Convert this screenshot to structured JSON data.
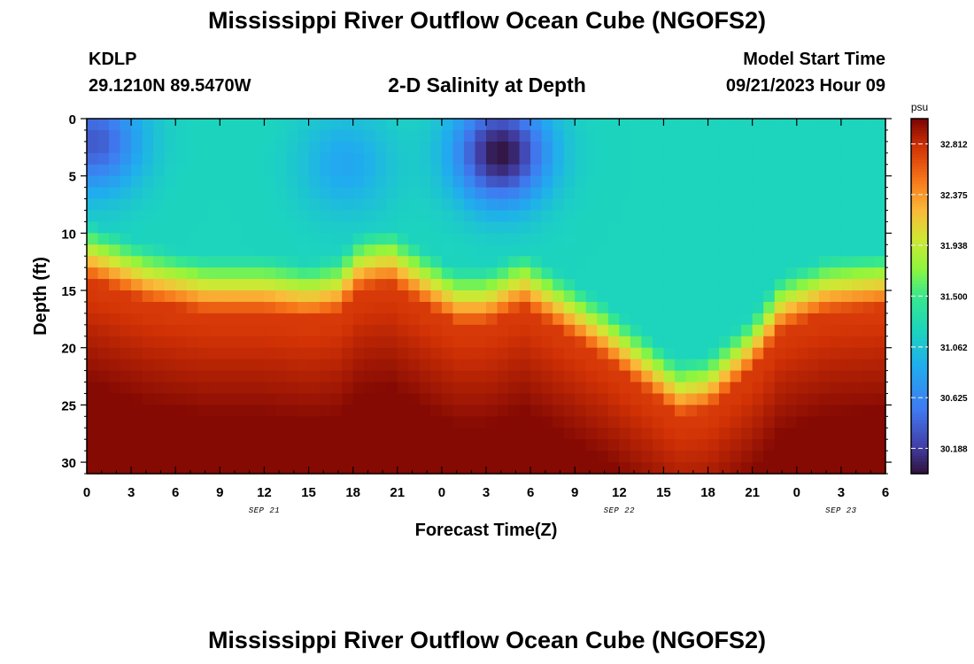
{
  "header": {
    "title": "Mississippi River Outflow Ocean Cube (NGOFS2)",
    "station": "KDLP",
    "coords": "29.1210N  89.5470W",
    "subtitle": "2-D Salinity at Depth",
    "model_start_label": "Model Start Time",
    "model_start_value": "09/21/2023 Hour 09"
  },
  "footer": {
    "title": "Mississippi River Outflow Ocean Cube (NGOFS2)"
  },
  "chart_data": {
    "type": "heatmap",
    "xlabel": "Forecast Time(Z)",
    "ylabel": "Depth (ft)",
    "x_range_hours": [
      0,
      54
    ],
    "x_ticks": [
      {
        "value": 0,
        "label": "0"
      },
      {
        "value": 3,
        "label": "3"
      },
      {
        "value": 6,
        "label": "6"
      },
      {
        "value": 9,
        "label": "9"
      },
      {
        "value": 12,
        "label": "12"
      },
      {
        "value": 15,
        "label": "15"
      },
      {
        "value": 18,
        "label": "18"
      },
      {
        "value": 21,
        "label": "21"
      },
      {
        "value": 24,
        "label": "0"
      },
      {
        "value": 27,
        "label": "3"
      },
      {
        "value": 30,
        "label": "6"
      },
      {
        "value": 33,
        "label": "9"
      },
      {
        "value": 36,
        "label": "12"
      },
      {
        "value": 39,
        "label": "15"
      },
      {
        "value": 42,
        "label": "18"
      },
      {
        "value": 45,
        "label": "21"
      },
      {
        "value": 48,
        "label": "0"
      },
      {
        "value": 51,
        "label": "3"
      },
      {
        "value": 54,
        "label": "6"
      }
    ],
    "date_labels": [
      {
        "value": 12,
        "label": "SEP 21"
      },
      {
        "value": 36,
        "label": "SEP 22"
      },
      {
        "value": 51,
        "label": "SEP 23"
      }
    ],
    "y_range": [
      0,
      31
    ],
    "y_ticks": [
      0,
      5,
      10,
      15,
      20,
      25,
      30
    ],
    "colorbar": {
      "unit": "psu",
      "range": [
        29.97,
        33.03
      ],
      "ticks": [
        "30.188",
        "30.625",
        "31.062",
        "31.500",
        "31.938",
        "32.375",
        "32.812"
      ]
    },
    "halocline_depth_ft": [
      {
        "x": 0,
        "depth": 12
      },
      {
        "x": 4,
        "depth": 14
      },
      {
        "x": 8,
        "depth": 15
      },
      {
        "x": 12,
        "depth": 15
      },
      {
        "x": 15,
        "depth": 15.5
      },
      {
        "x": 17,
        "depth": 15
      },
      {
        "x": 18.5,
        "depth": 13
      },
      {
        "x": 20.5,
        "depth": 12.5
      },
      {
        "x": 23,
        "depth": 14.5
      },
      {
        "x": 25,
        "depth": 16
      },
      {
        "x": 27,
        "depth": 16
      },
      {
        "x": 29.5,
        "depth": 14.5
      },
      {
        "x": 32,
        "depth": 16.5
      },
      {
        "x": 35,
        "depth": 19
      },
      {
        "x": 38,
        "depth": 22
      },
      {
        "x": 40,
        "depth": 24
      },
      {
        "x": 42,
        "depth": 23.5
      },
      {
        "x": 45,
        "depth": 20
      },
      {
        "x": 47,
        "depth": 16.5
      },
      {
        "x": 50,
        "depth": 15
      },
      {
        "x": 54,
        "depth": 14.5
      }
    ],
    "fresh_surface_cores": [
      {
        "x": 0.5,
        "depth": 2,
        "min_psu": 30.35
      },
      {
        "x": 17.5,
        "depth": 4,
        "min_psu": 30.85
      },
      {
        "x": 28,
        "depth": 3,
        "min_psu": 29.98
      }
    ]
  }
}
